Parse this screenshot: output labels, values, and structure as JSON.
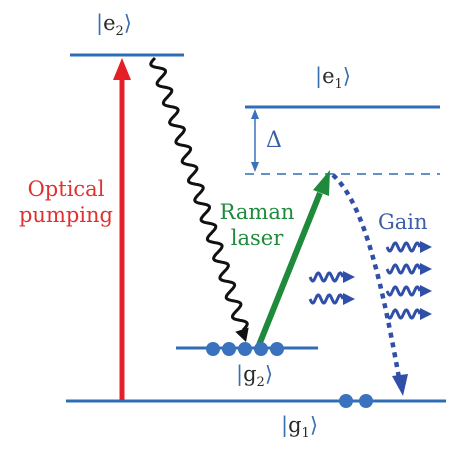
{
  "levels": {
    "e2": {
      "sym": "e",
      "sub": "2"
    },
    "e1": {
      "sym": "e",
      "sub": "1"
    },
    "g2": {
      "sym": "g",
      "sub": "2"
    },
    "g1": {
      "sym": "g",
      "sub": "1"
    }
  },
  "labels": {
    "optical_pumping_line1": "Optical",
    "optical_pumping_line2": "pumping",
    "raman_line1": "Raman",
    "raman_line2": "laser",
    "gain": "Gain",
    "delta": "Δ"
  },
  "colors": {
    "level_line": "#2f6db5",
    "pump_arrow": "#e41f26",
    "raman_arrow": "#1f8a3b",
    "decay": "#111111",
    "gain": "#2f4fa8",
    "atom": "#3a72bd"
  },
  "populations": {
    "g2_atoms": 5,
    "g1_atoms": 2
  }
}
